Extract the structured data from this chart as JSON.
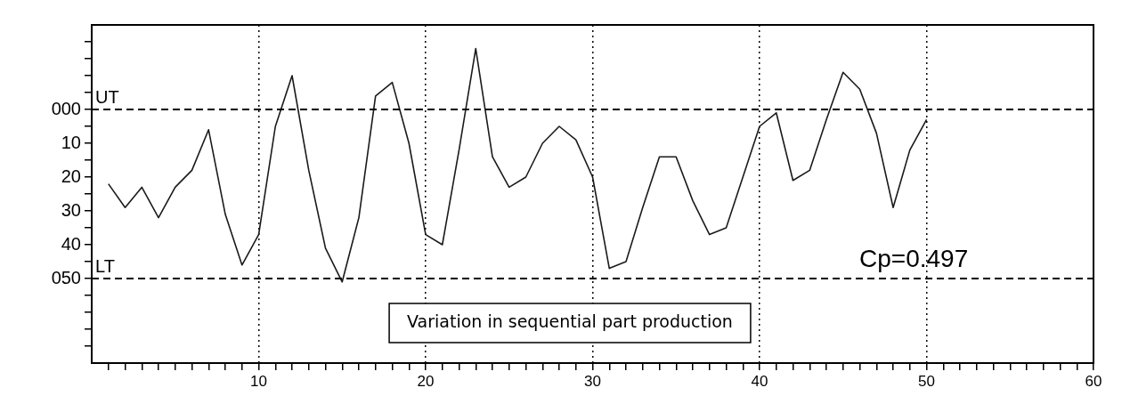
{
  "chart_data": {
    "type": "line",
    "color": "#1a1a1a",
    "marker": "none",
    "line_style": "solid",
    "grid": "x",
    "x": [
      1,
      2,
      3,
      4,
      5,
      6,
      7,
      8,
      9,
      10,
      11,
      12,
      13,
      14,
      15,
      16,
      17,
      18,
      19,
      20,
      21,
      22,
      23,
      24,
      25,
      26,
      27,
      28,
      29,
      30,
      31,
      32,
      33,
      34,
      35,
      36,
      37,
      38,
      39,
      40,
      41,
      42,
      43,
      44,
      45,
      46,
      47,
      48,
      49,
      50
    ],
    "values": [
      22,
      29,
      23,
      32,
      23,
      18,
      6,
      31,
      46,
      37,
      5,
      -10,
      18,
      41,
      51,
      32,
      -4,
      -8,
      10,
      37,
      40,
      12,
      -18,
      14,
      23,
      20,
      10,
      5,
      9,
      20,
      47,
      45,
      29,
      14,
      14,
      27,
      37,
      35,
      20,
      5,
      1,
      21,
      18,
      3,
      -11,
      -6,
      7,
      29,
      12,
      3
    ],
    "xlim": [
      0,
      60
    ],
    "xticks": [
      {
        "value": 1,
        "label": null
      },
      {
        "value": 2,
        "label": null
      },
      {
        "value": 3,
        "label": null
      },
      {
        "value": 4,
        "label": null
      },
      {
        "value": 5,
        "label": null
      },
      {
        "value": 6,
        "label": null
      },
      {
        "value": 7,
        "label": null
      },
      {
        "value": 8,
        "label": null
      },
      {
        "value": 9,
        "label": null
      },
      10,
      {
        "value": 11,
        "label": null
      },
      {
        "value": 12,
        "label": null
      },
      {
        "value": 13,
        "label": null
      },
      {
        "value": 14,
        "label": null
      },
      {
        "value": 15,
        "label": null
      },
      {
        "value": 16,
        "label": null
      },
      {
        "value": 17,
        "label": null
      },
      {
        "value": 18,
        "label": null
      },
      {
        "value": 19,
        "label": null
      },
      20,
      {
        "value": 21,
        "label": null
      },
      {
        "value": 22,
        "label": null
      },
      {
        "value": 23,
        "label": null
      },
      {
        "value": 24,
        "label": null
      },
      {
        "value": 25,
        "label": null
      },
      {
        "value": 26,
        "label": null
      },
      {
        "value": 27,
        "label": null
      },
      {
        "value": 28,
        "label": null
      },
      {
        "value": 29,
        "label": null
      },
      30,
      {
        "value": 31,
        "label": null
      },
      {
        "value": 32,
        "label": null
      },
      {
        "value": 33,
        "label": null
      },
      {
        "value": 34,
        "label": null
      },
      {
        "value": 35,
        "label": null
      },
      {
        "value": 36,
        "label": null
      },
      {
        "value": 37,
        "label": null
      },
      {
        "value": 38,
        "label": null
      },
      {
        "value": 39,
        "label": null
      },
      40,
      {
        "value": 41,
        "label": null
      },
      {
        "value": 42,
        "label": null
      },
      {
        "value": 43,
        "label": null
      },
      {
        "value": 44,
        "label": null
      },
      {
        "value": 45,
        "label": null
      },
      {
        "value": 46,
        "label": null
      },
      {
        "value": 47,
        "label": null
      },
      {
        "value": 48,
        "label": null
      },
      {
        "value": 49,
        "label": null
      },
      50,
      {
        "value": 51,
        "label": null
      },
      {
        "value": 52,
        "label": null
      },
      {
        "value": 53,
        "label": null
      },
      {
        "value": 54,
        "label": null
      },
      {
        "value": 55,
        "label": null
      },
      {
        "value": 56,
        "label": null
      },
      {
        "value": 57,
        "label": null
      },
      {
        "value": 58,
        "label": null
      },
      {
        "value": 59,
        "label": null
      },
      60
    ],
    "ylim": [
      75,
      -25
    ],
    "yticks": [
      {
        "value": -20,
        "label": null
      },
      {
        "value": -15,
        "label": null
      },
      {
        "value": -10,
        "label": null
      },
      {
        "value": -5,
        "label": null
      },
      {
        "value": 0,
        "label": "000"
      },
      {
        "value": 5,
        "label": null
      },
      10,
      {
        "value": 15,
        "label": null
      },
      20,
      {
        "value": 25,
        "label": null
      },
      30,
      {
        "value": 35,
        "label": null
      },
      40,
      {
        "value": 45,
        "label": null
      },
      {
        "value": 50,
        "label": "050"
      },
      {
        "value": 55,
        "label": null
      },
      {
        "value": 60,
        "label": null
      },
      {
        "value": 65,
        "label": null
      },
      {
        "value": 70,
        "label": null
      }
    ],
    "ref_lines": [
      {
        "axis": "y",
        "value": 0,
        "label": "UT",
        "line_style": "dashed"
      },
      {
        "axis": "y",
        "value": 50,
        "label": "LT",
        "line_style": "dashed"
      }
    ],
    "annotations": [
      "Variation in sequential part production",
      "Cp=0.497"
    ]
  }
}
